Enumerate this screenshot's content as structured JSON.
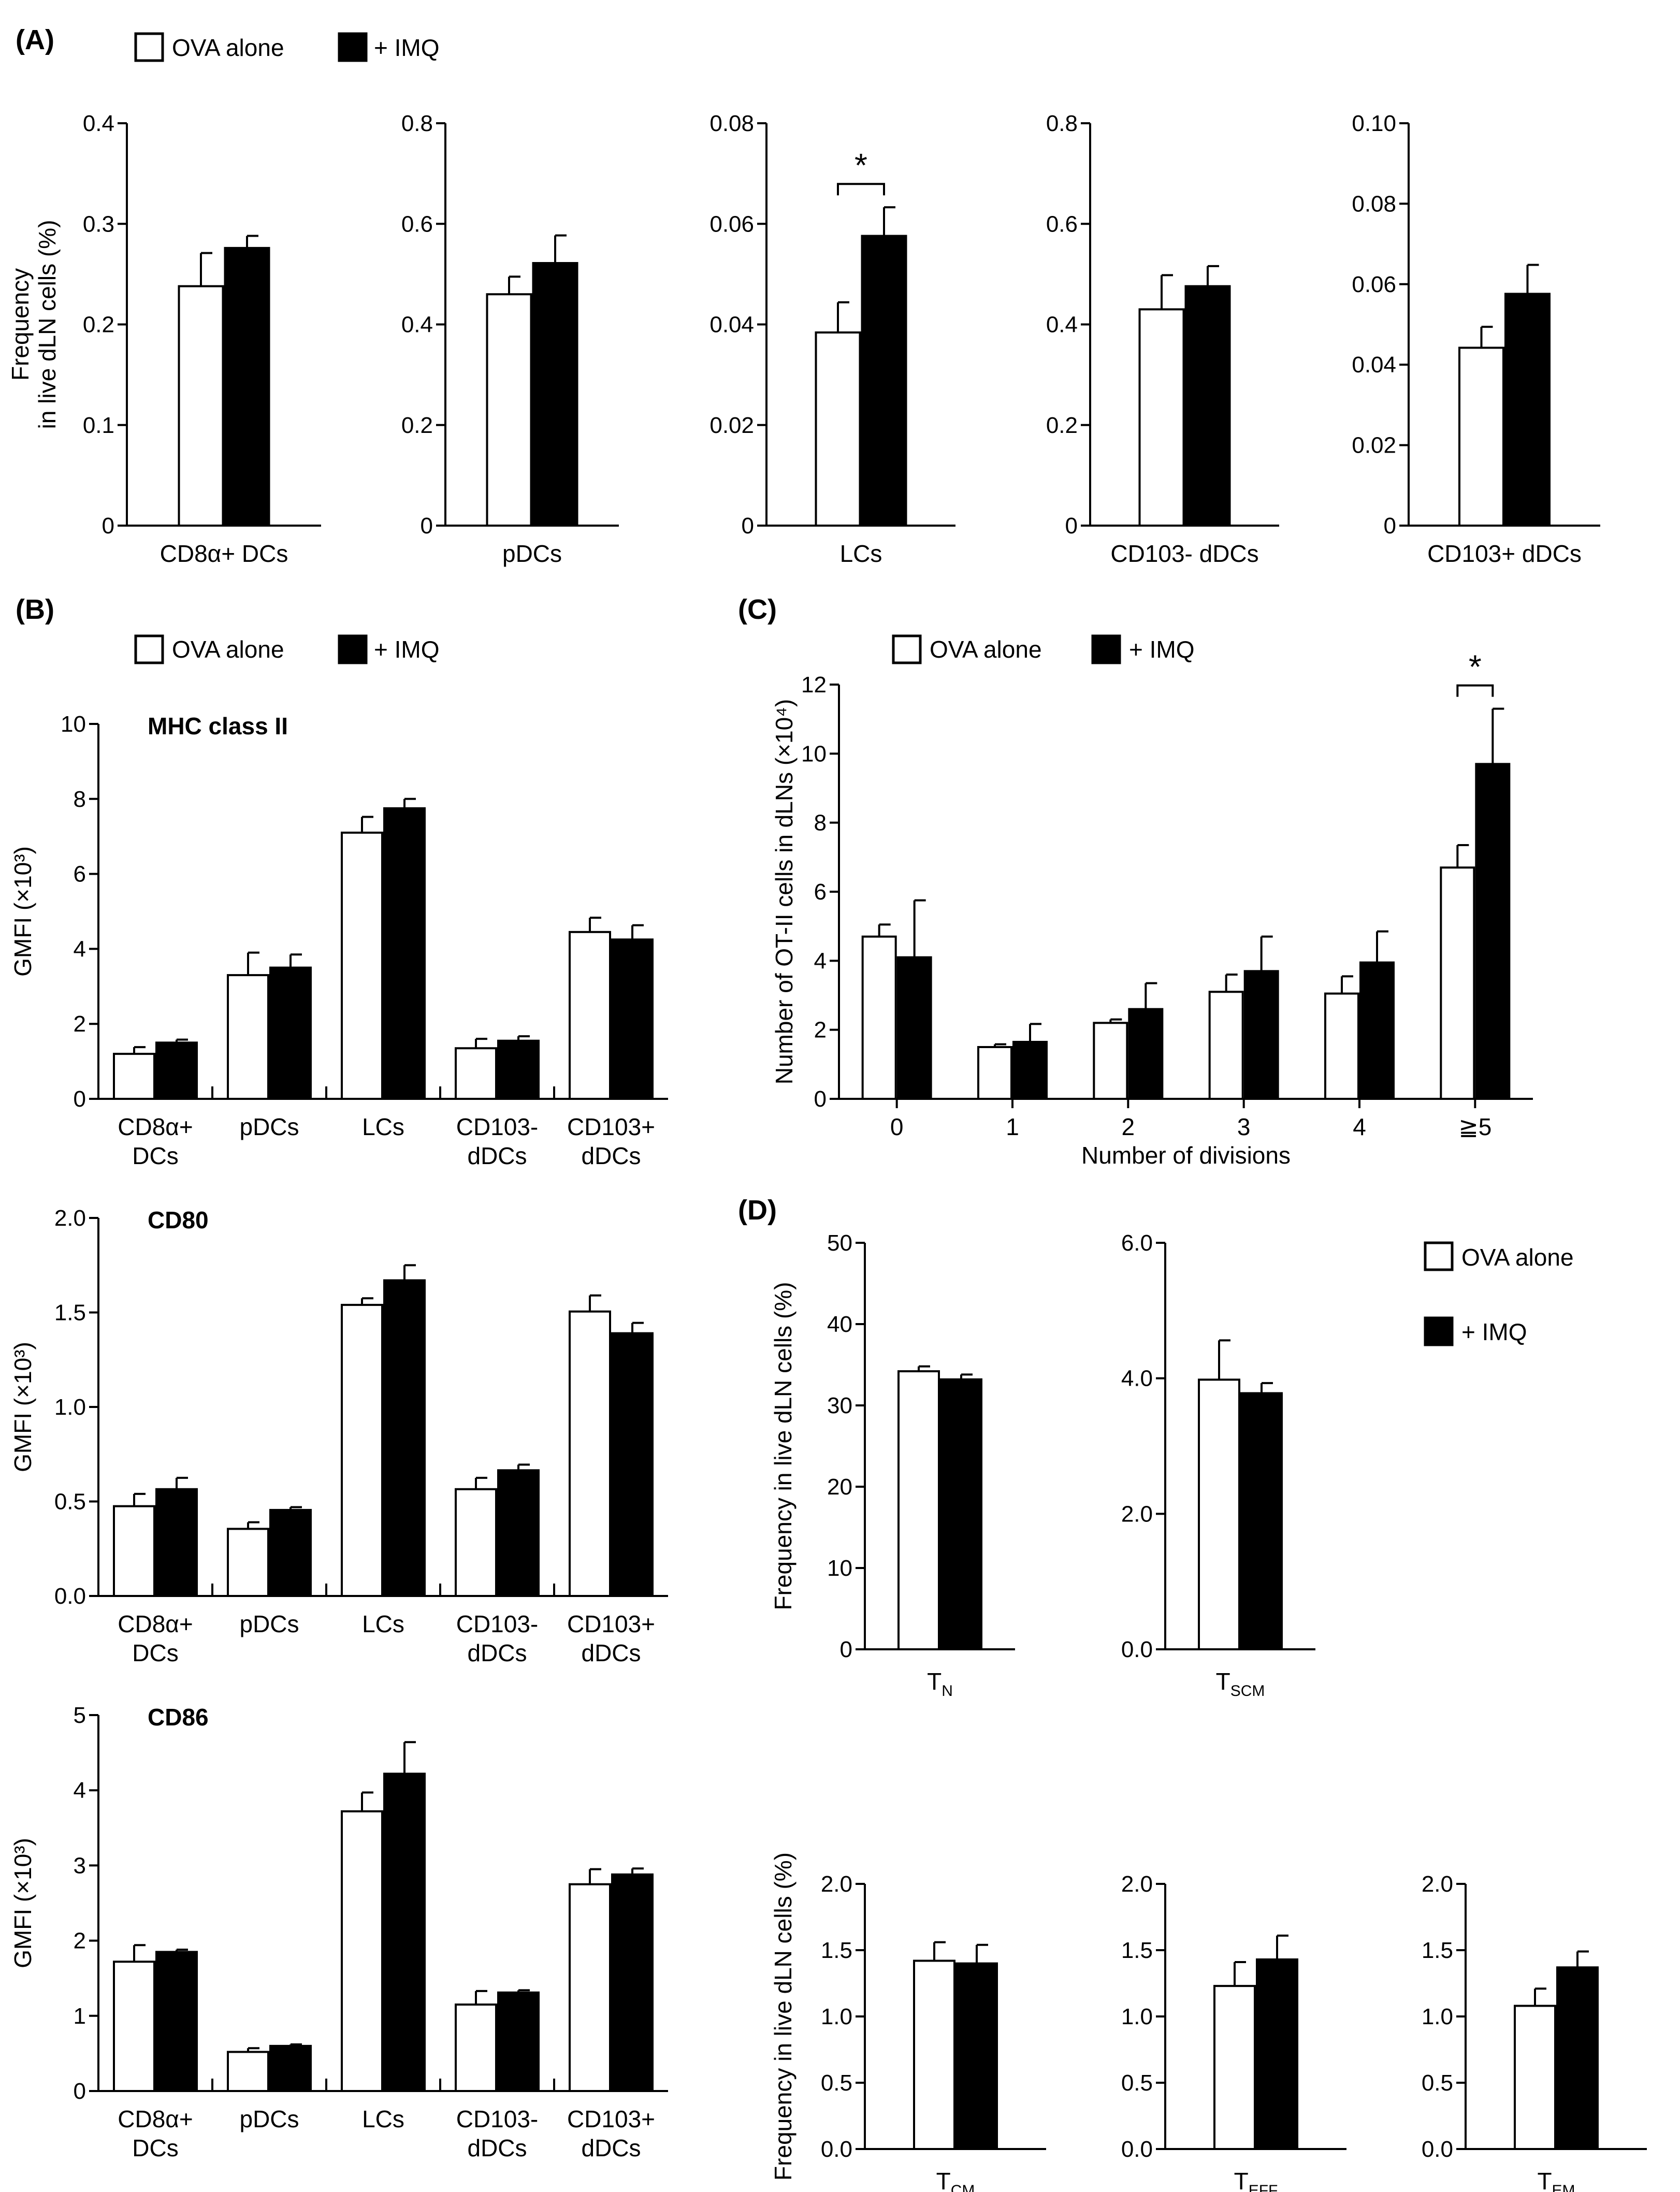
{
  "legend": {
    "ova_label": "OVA alone",
    "imq_label": "+ IMQ"
  },
  "colors": {
    "ova_fill": "#ffffff",
    "imq_fill": "#000000",
    "axis": "#000000"
  },
  "panel_labels": {
    "A": "(A)",
    "B": "(B)",
    "C": "(C)",
    "D": "(D)"
  },
  "chart_data": [
    {
      "id": "A1",
      "panel": "A",
      "type": "bar",
      "title": "",
      "xlabel": "",
      "ylabel": "Frequency\nin live dLN cells (%)",
      "ylim": [
        0,
        0.4
      ],
      "yticks": [
        0,
        0.1,
        0.2,
        0.3,
        0.4
      ],
      "ytick_labels": [
        "0",
        "0.1",
        "0.2",
        "0.3",
        "0.4"
      ],
      "categories": [
        "CD8α+ DCs"
      ],
      "series": [
        {
          "name": "OVA alone",
          "values": [
            0.238
          ],
          "errors": [
            0.033
          ]
        },
        {
          "name": "+ IMQ",
          "values": [
            0.276
          ],
          "errors": [
            0.012
          ]
        }
      ],
      "significance": []
    },
    {
      "id": "A2",
      "panel": "A",
      "type": "bar",
      "title": "",
      "xlabel": "",
      "ylabel": "",
      "ylim": [
        0,
        0.8
      ],
      "yticks": [
        0,
        0.2,
        0.4,
        0.6,
        0.8
      ],
      "ytick_labels": [
        "0",
        "0.2",
        "0.4",
        "0.6",
        "0.8"
      ],
      "categories": [
        "pDCs"
      ],
      "series": [
        {
          "name": "OVA alone",
          "values": [
            0.46
          ],
          "errors": [
            0.035
          ]
        },
        {
          "name": "+ IMQ",
          "values": [
            0.522
          ],
          "errors": [
            0.055
          ]
        }
      ],
      "significance": []
    },
    {
      "id": "A3",
      "panel": "A",
      "type": "bar",
      "title": "",
      "xlabel": "",
      "ylabel": "",
      "ylim": [
        0,
        0.08
      ],
      "yticks": [
        0,
        0.02,
        0.04,
        0.06,
        0.08
      ],
      "ytick_labels": [
        "0",
        "0.02",
        "0.04",
        "0.06",
        "0.08"
      ],
      "categories": [
        "LCs"
      ],
      "series": [
        {
          "name": "OVA alone",
          "values": [
            0.0384
          ],
          "errors": [
            0.006
          ]
        },
        {
          "name": "+ IMQ",
          "values": [
            0.0576
          ],
          "errors": [
            0.0057
          ]
        }
      ],
      "significance": [
        {
          "category": 0,
          "label": "*"
        }
      ]
    },
    {
      "id": "A4",
      "panel": "A",
      "type": "bar",
      "title": "",
      "xlabel": "",
      "ylabel": "",
      "ylim": [
        0,
        0.8
      ],
      "yticks": [
        0,
        0.2,
        0.4,
        0.6,
        0.8
      ],
      "ytick_labels": [
        "0",
        "0.2",
        "0.4",
        "0.6",
        "0.8"
      ],
      "categories": [
        "CD103- dDCs"
      ],
      "series": [
        {
          "name": "OVA alone",
          "values": [
            0.43
          ],
          "errors": [
            0.068
          ]
        },
        {
          "name": "+ IMQ",
          "values": [
            0.476
          ],
          "errors": [
            0.04
          ]
        }
      ],
      "significance": []
    },
    {
      "id": "A5",
      "panel": "A",
      "type": "bar",
      "title": "",
      "xlabel": "",
      "ylabel": "",
      "ylim": [
        0,
        0.1
      ],
      "yticks": [
        0,
        0.02,
        0.04,
        0.06,
        0.08,
        0.1
      ],
      "ytick_labels": [
        "0",
        "0.02",
        "0.04",
        "0.06",
        "0.08",
        "0.10"
      ],
      "categories": [
        "CD103+ dDCs"
      ],
      "series": [
        {
          "name": "OVA alone",
          "values": [
            0.0442
          ],
          "errors": [
            0.0052
          ]
        },
        {
          "name": "+ IMQ",
          "values": [
            0.0576
          ],
          "errors": [
            0.0072
          ]
        }
      ],
      "significance": []
    },
    {
      "id": "B1",
      "panel": "B",
      "type": "bar",
      "title": "MHC class II",
      "xlabel": "",
      "ylabel": "GMFI (×10³)",
      "ylim": [
        0,
        10
      ],
      "yticks": [
        0,
        2,
        4,
        6,
        8,
        10
      ],
      "ytick_labels": [
        "0",
        "2",
        "4",
        "6",
        "8",
        "10"
      ],
      "categories": [
        "CD8α+\nDCs",
        "pDCs",
        "LCs",
        "CD103-\ndDCs",
        "CD103+\ndDCs"
      ],
      "series": [
        {
          "name": "OVA alone",
          "values": [
            1.2,
            3.3,
            7.1,
            1.35,
            4.45
          ],
          "errors": [
            0.18,
            0.6,
            0.42,
            0.25,
            0.38
          ]
        },
        {
          "name": "+ IMQ",
          "values": [
            1.5,
            3.5,
            7.75,
            1.55,
            4.25
          ],
          "errors": [
            0.08,
            0.35,
            0.25,
            0.12,
            0.38
          ]
        }
      ],
      "significance": []
    },
    {
      "id": "B2",
      "panel": "B",
      "type": "bar",
      "title": "CD80",
      "xlabel": "",
      "ylabel": "GMFI (×10³)",
      "ylim": [
        0,
        2
      ],
      "yticks": [
        0,
        0.5,
        1,
        1.5,
        2
      ],
      "ytick_labels": [
        "0.0",
        "0.5",
        "1.0",
        "1.5",
        "2.0"
      ],
      "categories": [
        "CD8α+\nDCs",
        "pDCs",
        "LCs",
        "CD103-\ndDCs",
        "CD103+\ndDCs"
      ],
      "series": [
        {
          "name": "OVA alone",
          "values": [
            0.475,
            0.355,
            1.54,
            0.565,
            1.505
          ],
          "errors": [
            0.065,
            0.035,
            0.035,
            0.06,
            0.085
          ]
        },
        {
          "name": "+ IMQ",
          "values": [
            0.565,
            0.455,
            1.67,
            0.665,
            1.39
          ],
          "errors": [
            0.06,
            0.015,
            0.08,
            0.03,
            0.055
          ]
        }
      ],
      "significance": []
    },
    {
      "id": "B3",
      "panel": "B",
      "type": "bar",
      "title": "CD86",
      "xlabel": "",
      "ylabel": "GMFI (×10³)",
      "ylim": [
        0,
        5
      ],
      "yticks": [
        0,
        1,
        2,
        3,
        4,
        5
      ],
      "ytick_labels": [
        "0",
        "1",
        "2",
        "3",
        "4",
        "5"
      ],
      "categories": [
        "CD8α+\nDCs",
        "pDCs",
        "LCs",
        "CD103-\ndDCs",
        "CD103+\ndDCs"
      ],
      "series": [
        {
          "name": "OVA alone",
          "values": [
            1.72,
            0.52,
            3.72,
            1.15,
            2.75
          ],
          "errors": [
            0.22,
            0.05,
            0.25,
            0.18,
            0.2
          ]
        },
        {
          "name": "+ IMQ",
          "values": [
            1.85,
            0.6,
            4.22,
            1.31,
            2.88
          ],
          "errors": [
            0.03,
            0.02,
            0.42,
            0.03,
            0.08
          ]
        }
      ],
      "significance": []
    },
    {
      "id": "C",
      "panel": "C",
      "type": "bar",
      "title": "",
      "xlabel": "Number of divisions",
      "ylabel": "Number of OT-II cells in dLNs (×10⁴)",
      "ylim": [
        0,
        12
      ],
      "yticks": [
        0,
        2,
        4,
        6,
        8,
        10,
        12
      ],
      "ytick_labels": [
        "0",
        "2",
        "4",
        "6",
        "8",
        "10",
        "12"
      ],
      "categories": [
        "0",
        "1",
        "2",
        "3",
        "4",
        "≧5"
      ],
      "series": [
        {
          "name": "OVA alone",
          "values": [
            4.7,
            1.5,
            2.2,
            3.1,
            3.05,
            6.7
          ],
          "errors": [
            0.35,
            0.08,
            0.1,
            0.5,
            0.5,
            0.65
          ]
        },
        {
          "name": "+ IMQ",
          "values": [
            4.1,
            1.65,
            2.6,
            3.7,
            3.95,
            9.7
          ],
          "errors": [
            1.65,
            0.52,
            0.75,
            1.0,
            0.9,
            1.6
          ]
        }
      ],
      "significance": [
        {
          "category": 5,
          "label": "*"
        }
      ]
    },
    {
      "id": "D1",
      "panel": "D",
      "type": "bar",
      "title": "",
      "xlabel": "",
      "ylabel": "Frequency in live dLN cells (%)",
      "ylim": [
        0,
        50
      ],
      "yticks": [
        0,
        10,
        20,
        30,
        40,
        50
      ],
      "ytick_labels": [
        "0",
        "10",
        "20",
        "30",
        "40",
        "50"
      ],
      "categories": [
        "TN"
      ],
      "category_main": [
        "T"
      ],
      "category_sub": [
        "N"
      ],
      "series": [
        {
          "name": "OVA alone",
          "values": [
            34.2
          ],
          "errors": [
            0.6
          ]
        },
        {
          "name": "+ IMQ",
          "values": [
            33.2
          ],
          "errors": [
            0.6
          ]
        }
      ],
      "significance": []
    },
    {
      "id": "D2",
      "panel": "D",
      "type": "bar",
      "title": "",
      "xlabel": "",
      "ylabel": "",
      "ylim": [
        0,
        6
      ],
      "yticks": [
        0,
        2,
        4,
        6
      ],
      "ytick_labels": [
        "0.0",
        "2.0",
        "4.0",
        "6.0"
      ],
      "categories": [
        "TSCM"
      ],
      "category_main": [
        "T"
      ],
      "category_sub": [
        "SCM"
      ],
      "series": [
        {
          "name": "OVA alone",
          "values": [
            3.98
          ],
          "errors": [
            0.58
          ]
        },
        {
          "name": "+ IMQ",
          "values": [
            3.78
          ],
          "errors": [
            0.15
          ]
        }
      ],
      "significance": []
    },
    {
      "id": "D3",
      "panel": "D",
      "type": "bar",
      "title": "",
      "xlabel": "",
      "ylabel": "Frequency in live dLN cells (%)",
      "ylim": [
        0,
        2
      ],
      "yticks": [
        0,
        0.5,
        1,
        1.5,
        2
      ],
      "ytick_labels": [
        "0.0",
        "0.5",
        "1.0",
        "1.5",
        "2.0"
      ],
      "categories": [
        "TCM"
      ],
      "category_main": [
        "T"
      ],
      "category_sub": [
        "CM"
      ],
      "series": [
        {
          "name": "OVA alone",
          "values": [
            1.42
          ],
          "errors": [
            0.14
          ]
        },
        {
          "name": "+ IMQ",
          "values": [
            1.4
          ],
          "errors": [
            0.14
          ]
        }
      ],
      "significance": []
    },
    {
      "id": "D4",
      "panel": "D",
      "type": "bar",
      "title": "",
      "xlabel": "",
      "ylabel": "",
      "ylim": [
        0,
        2
      ],
      "yticks": [
        0,
        0.5,
        1,
        1.5,
        2
      ],
      "ytick_labels": [
        "0.0",
        "0.5",
        "1.0",
        "1.5",
        "2.0"
      ],
      "categories": [
        "TEFF"
      ],
      "category_main": [
        "T"
      ],
      "category_sub": [
        "EFF"
      ],
      "series": [
        {
          "name": "OVA alone",
          "values": [
            1.23
          ],
          "errors": [
            0.18
          ]
        },
        {
          "name": "+ IMQ",
          "values": [
            1.43
          ],
          "errors": [
            0.18
          ]
        }
      ],
      "significance": []
    },
    {
      "id": "D5",
      "panel": "D",
      "type": "bar",
      "title": "",
      "xlabel": "",
      "ylabel": "",
      "ylim": [
        0,
        2
      ],
      "yticks": [
        0,
        0.5,
        1,
        1.5,
        2
      ],
      "ytick_labels": [
        "0.0",
        "0.5",
        "1.0",
        "1.5",
        "2.0"
      ],
      "categories": [
        "TEM"
      ],
      "category_main": [
        "T"
      ],
      "category_sub": [
        "EM"
      ],
      "series": [
        {
          "name": "OVA alone",
          "values": [
            1.08
          ],
          "errors": [
            0.13
          ]
        },
        {
          "name": "+ IMQ",
          "values": [
            1.37
          ],
          "errors": [
            0.12
          ]
        }
      ],
      "significance": []
    }
  ]
}
